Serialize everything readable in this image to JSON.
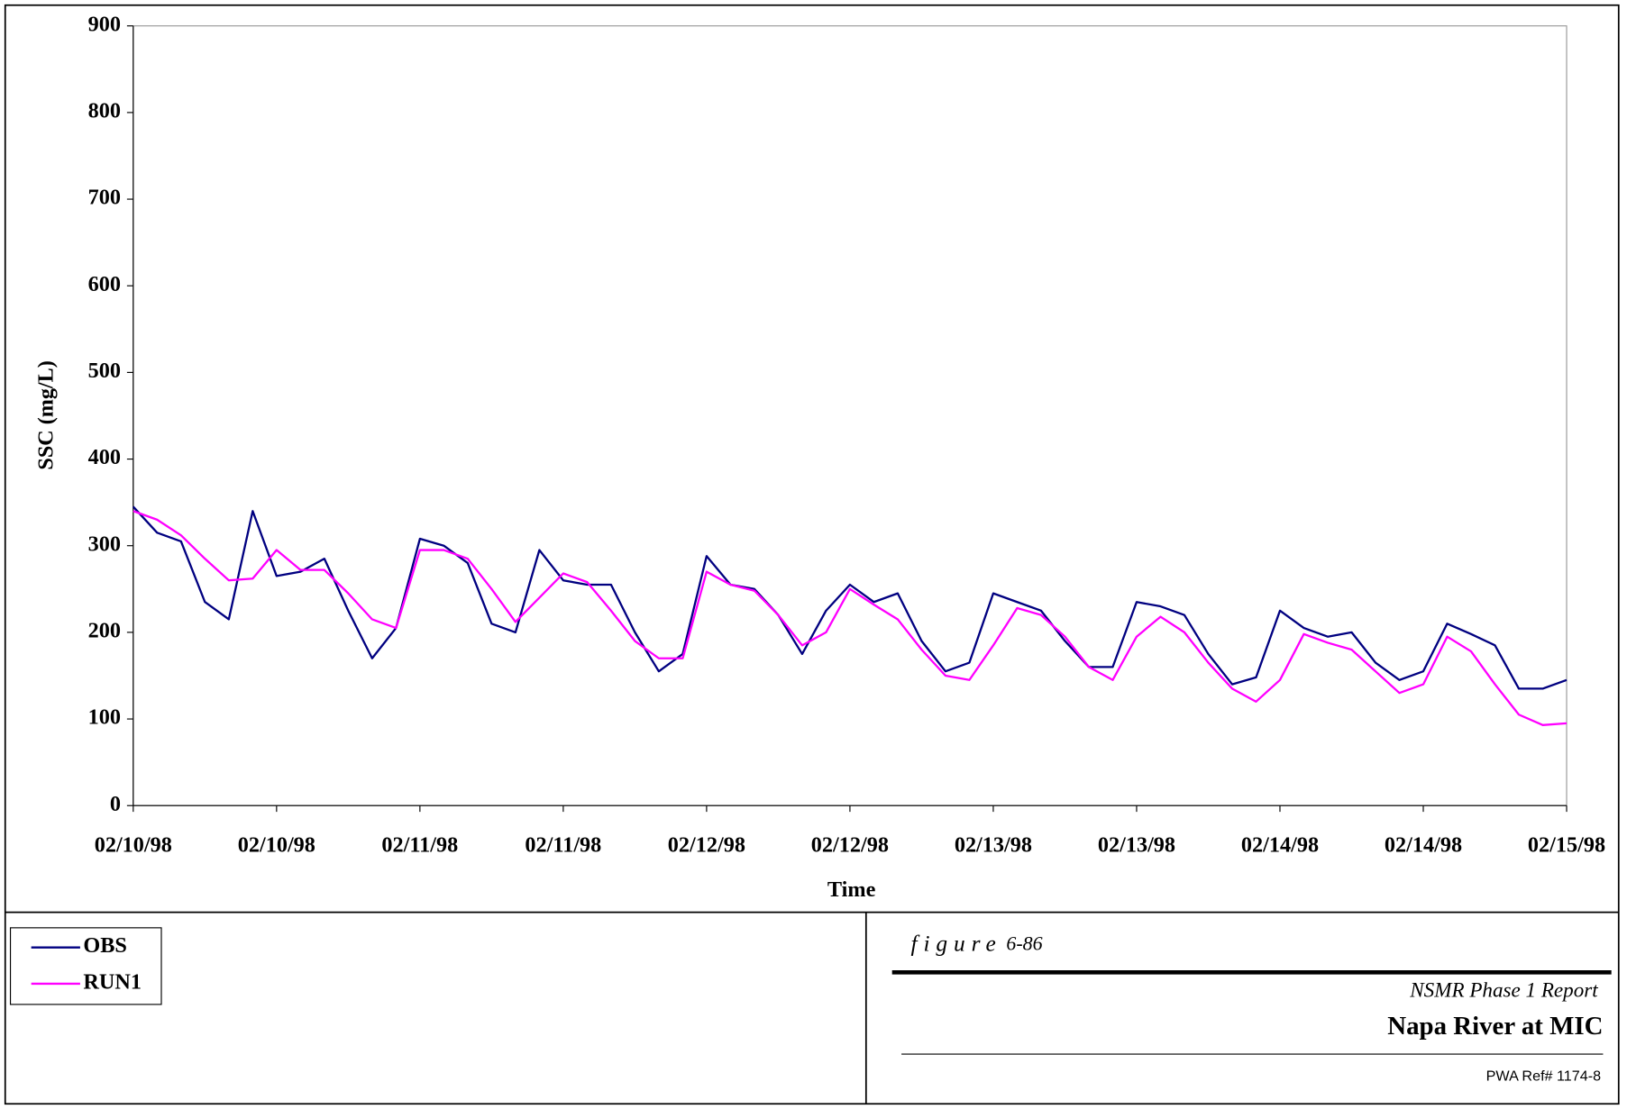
{
  "chart_data": {
    "type": "line",
    "x_label": "Time",
    "y_label": "SSC (mg/L)",
    "xlim": [
      0,
      120
    ],
    "ylim": [
      0,
      900
    ],
    "xticks": [
      {
        "value": 0,
        "label": "02/10/98"
      },
      {
        "value": 12,
        "label": "02/10/98"
      },
      {
        "value": 24,
        "label": "02/11/98"
      },
      {
        "value": 36,
        "label": "02/11/98"
      },
      {
        "value": 48,
        "label": "02/12/98"
      },
      {
        "value": 60,
        "label": "02/12/98"
      },
      {
        "value": 72,
        "label": "02/13/98"
      },
      {
        "value": 84,
        "label": "02/13/98"
      },
      {
        "value": 96,
        "label": "02/14/98"
      },
      {
        "value": 108,
        "label": "02/14/98"
      },
      {
        "value": 120,
        "label": "02/15/98"
      }
    ],
    "yticks": [
      0,
      100,
      200,
      300,
      400,
      500,
      600,
      700,
      800,
      900
    ],
    "grid": false,
    "legend": "bottom-left",
    "x": [
      0,
      2,
      4,
      6,
      8,
      10,
      12,
      14,
      16,
      18,
      20,
      22,
      24,
      26,
      28,
      30,
      32,
      34,
      36,
      38,
      40,
      42,
      44,
      46,
      48,
      50,
      52,
      54,
      56,
      58,
      60,
      62,
      64,
      66,
      68,
      70,
      72,
      74,
      76,
      78,
      80,
      82,
      84,
      86,
      88,
      90,
      92,
      94,
      96,
      98,
      100,
      102,
      104,
      106,
      108,
      110,
      112,
      114,
      116,
      118,
      120
    ],
    "series": [
      {
        "name": "OBS",
        "color": "#000080",
        "values": [
          345,
          315,
          305,
          235,
          215,
          340,
          265,
          270,
          285,
          225,
          170,
          205,
          308,
          300,
          280,
          210,
          200,
          295,
          260,
          255,
          255,
          200,
          155,
          175,
          288,
          255,
          250,
          220,
          175,
          225,
          255,
          235,
          245,
          190,
          155,
          165,
          245,
          235,
          225,
          190,
          160,
          160,
          235,
          230,
          220,
          175,
          140,
          148,
          225,
          205,
          195,
          200,
          165,
          145,
          155,
          210,
          198,
          185,
          135,
          135,
          145
        ]
      },
      {
        "name": "RUN1",
        "color": "#ff00ff",
        "values": [
          340,
          330,
          312,
          285,
          260,
          262,
          295,
          272,
          272,
          245,
          215,
          205,
          295,
          295,
          285,
          250,
          212,
          240,
          268,
          258,
          225,
          190,
          170,
          170,
          270,
          255,
          248,
          220,
          185,
          200,
          250,
          232,
          215,
          180,
          150,
          145,
          185,
          228,
          220,
          195,
          160,
          145,
          195,
          218,
          200,
          165,
          135,
          120,
          145,
          198,
          188,
          180,
          155,
          130,
          140,
          195,
          178,
          140,
          105,
          93,
          95
        ]
      }
    ]
  },
  "title_block": {
    "figure_label": "figure",
    "figure_number": "6-86",
    "report": "NSMR Phase 1 Report",
    "title": "Napa River at MIC",
    "reference": "PWA Ref# 1174-8"
  }
}
